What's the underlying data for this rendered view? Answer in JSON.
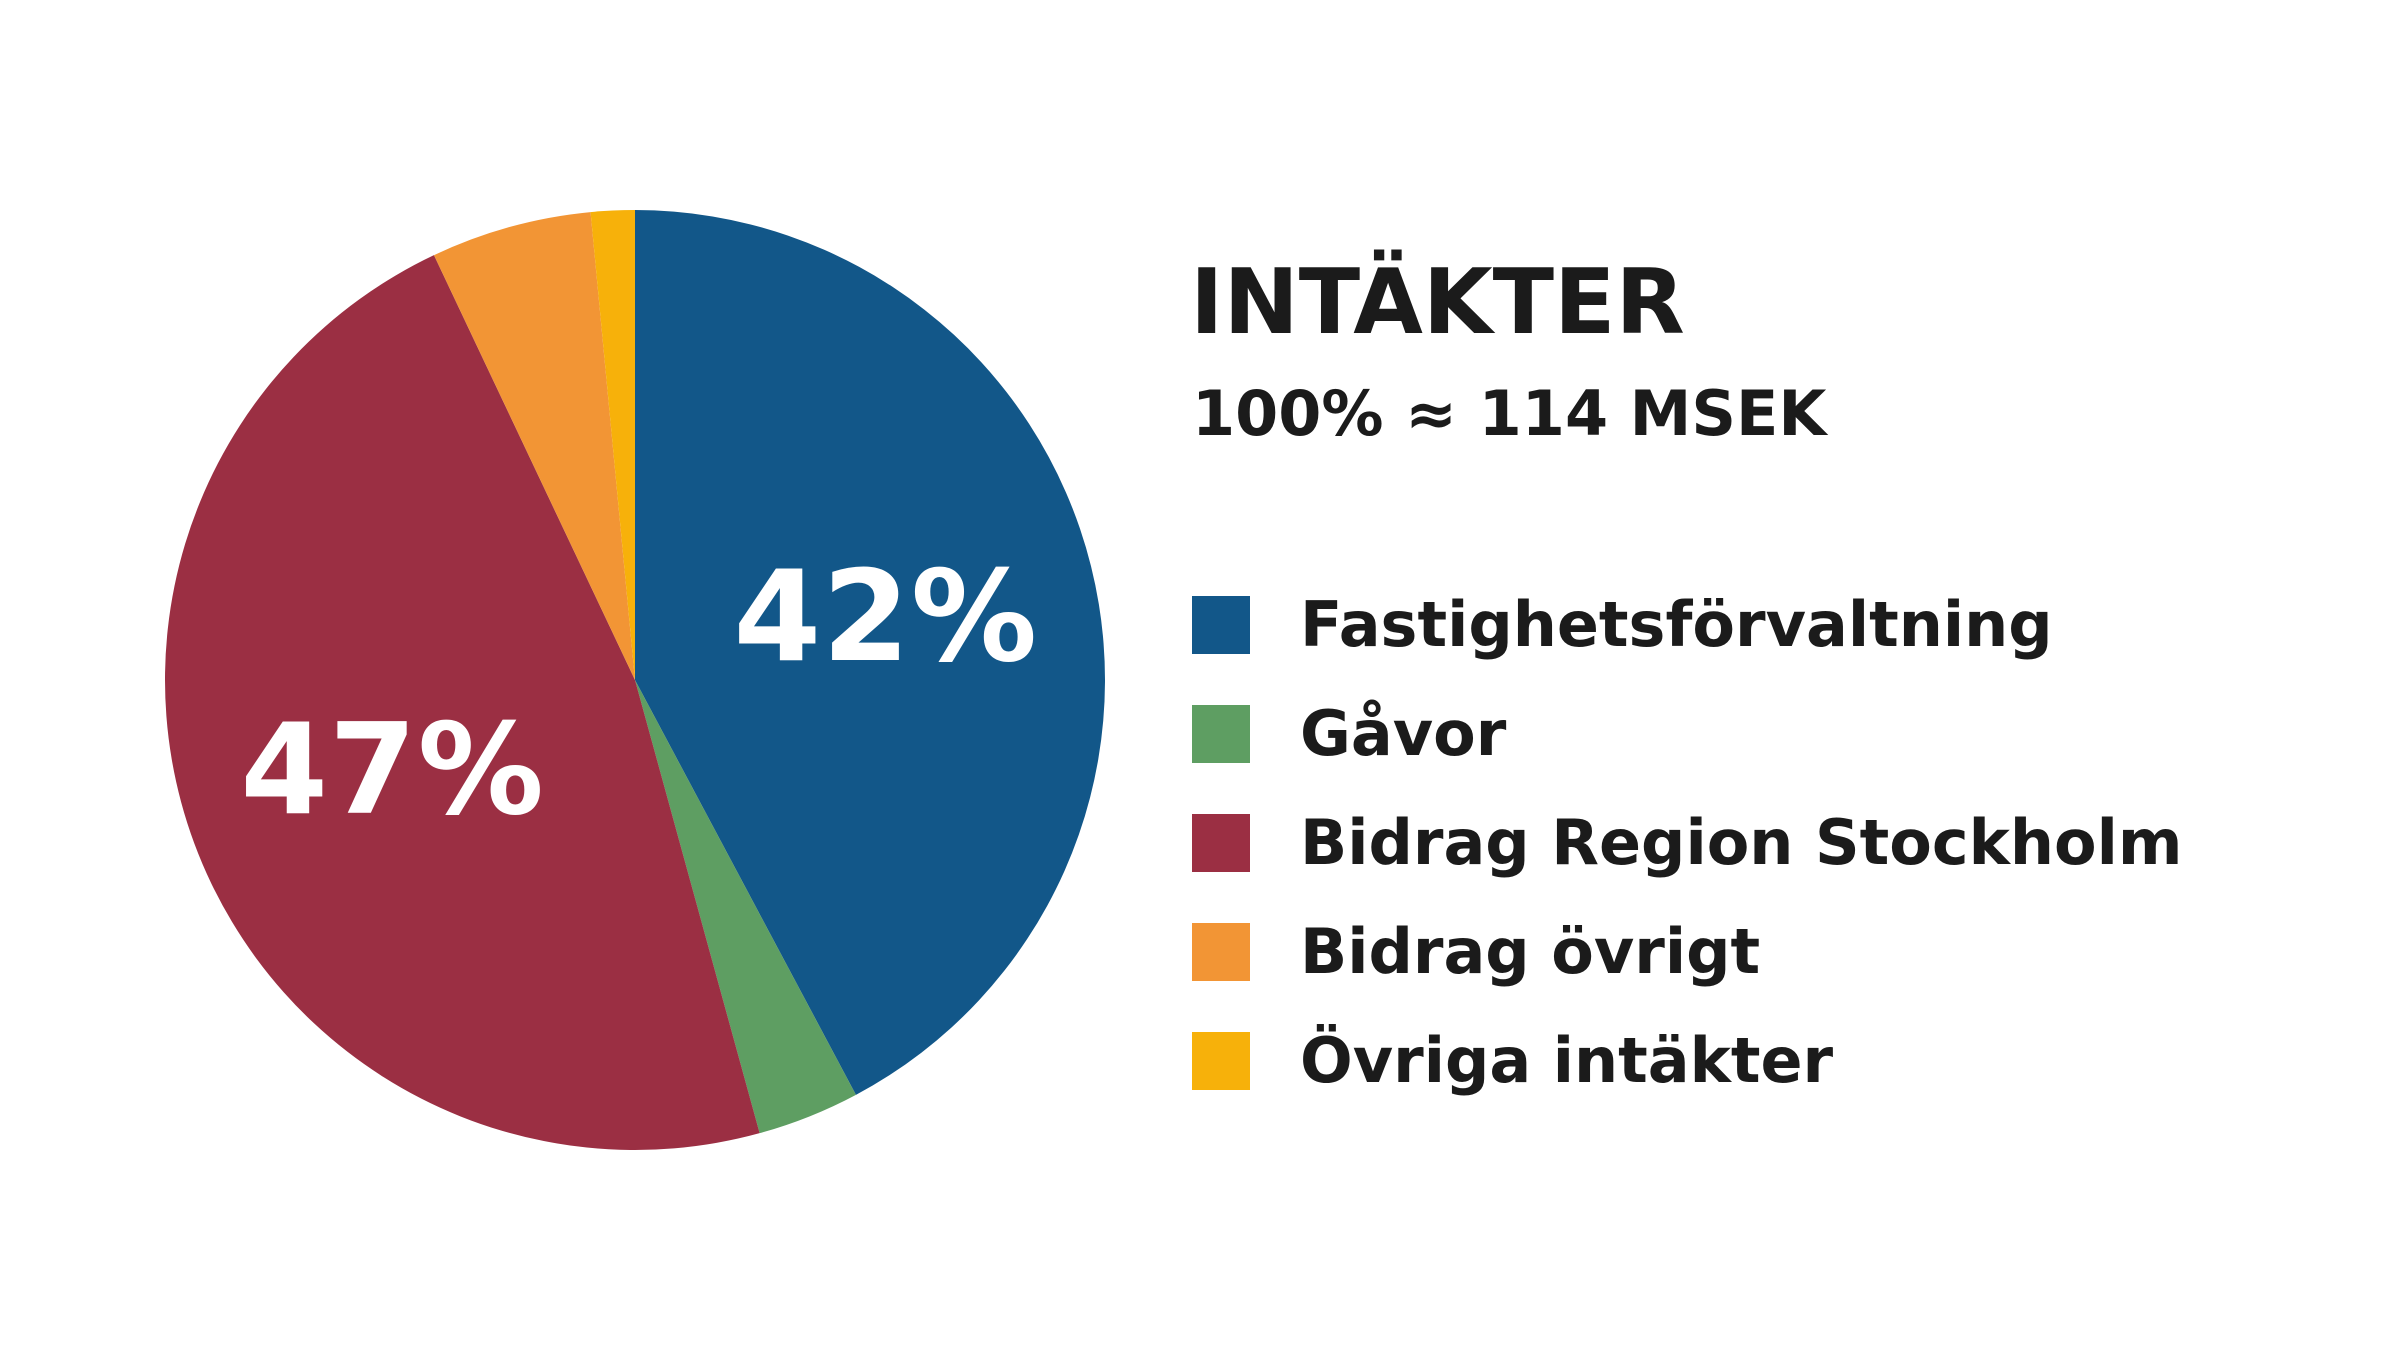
{
  "chart_data": {
    "type": "pie",
    "title": "INTÄKTER",
    "subtitle": "100% ≈ 114 MSEK",
    "legend_position": "right",
    "categories": [
      "Fastighetsförvaltning",
      "Gåvor",
      "Bidrag Region Stockholm",
      "Bidrag övrigt",
      "Övriga intäkter"
    ],
    "values": [
      42,
      3.5,
      47,
      5.5,
      1.5
    ],
    "colors": [
      "#125789",
      "#5e9e62",
      "#9b2f43",
      "#f29535",
      "#f7b10a"
    ],
    "data_labels": [
      "42%",
      "",
      "47%",
      "",
      ""
    ]
  }
}
